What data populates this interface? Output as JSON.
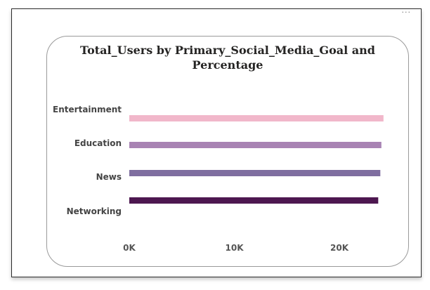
{
  "visual": {
    "more_options_icon": "ellipsis-icon",
    "more_options_glyph": "···"
  },
  "chart_data": {
    "type": "bar",
    "orientation": "horizontal",
    "title_lines": [
      "Total_Users by Primary_Social_Media_Goal and",
      "Percentage"
    ],
    "categories": [
      "Entertainment",
      "Education",
      "News",
      "Networking"
    ],
    "values": [
      24200,
      24000,
      23900,
      23700
    ],
    "colors": [
      "#f1b7ca",
      "#a883b3",
      "#7f6ea0",
      "#4d1750"
    ],
    "xlim": [
      0,
      25000
    ],
    "xticks": [
      0,
      10000,
      20000
    ],
    "xtick_labels": [
      "0K",
      "10K",
      "20K"
    ],
    "xlabel": "",
    "ylabel": "",
    "grid": false,
    "legend": "none"
  }
}
